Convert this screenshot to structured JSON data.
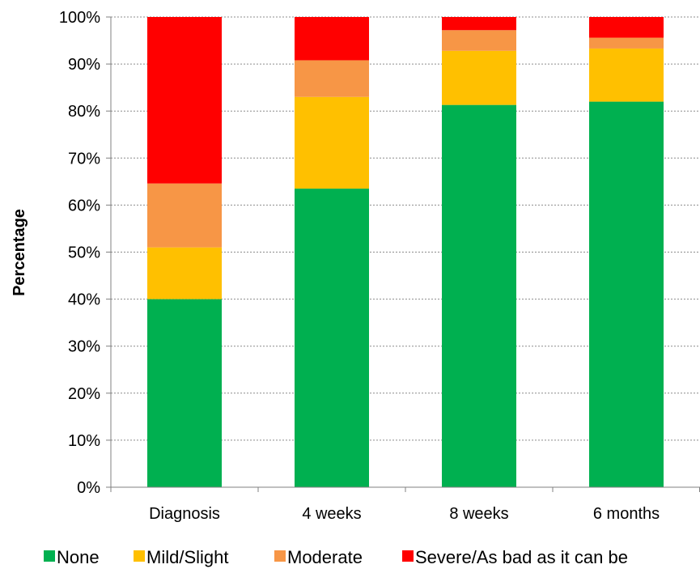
{
  "chart_data": {
    "type": "bar",
    "stacked": true,
    "title": "",
    "xlabel": "",
    "ylabel": "Percentage",
    "ylim": [
      0,
      100
    ],
    "y_ticks": [
      "0%",
      "10%",
      "20%",
      "30%",
      "40%",
      "50%",
      "60%",
      "70%",
      "80%",
      "90%",
      "100%"
    ],
    "grid": true,
    "legend_position": "bottom",
    "categories": [
      "Diagnosis",
      "4 weeks",
      "8 weeks",
      "6 months"
    ],
    "series": [
      {
        "name": "None",
        "color": "#00b050",
        "values": [
          40,
          63.5,
          81.3,
          82
        ]
      },
      {
        "name": "Mild/Slight",
        "color": "#ffc000",
        "values": [
          11,
          19.5,
          11.5,
          11.3
        ]
      },
      {
        "name": "Moderate",
        "color": "#f79646",
        "values": [
          13.6,
          7.8,
          4.4,
          2.3
        ]
      },
      {
        "name": "Severe/As bad as it can be",
        "color": "#ff0000",
        "values": [
          35.4,
          9.2,
          2.8,
          4.4
        ]
      }
    ]
  }
}
